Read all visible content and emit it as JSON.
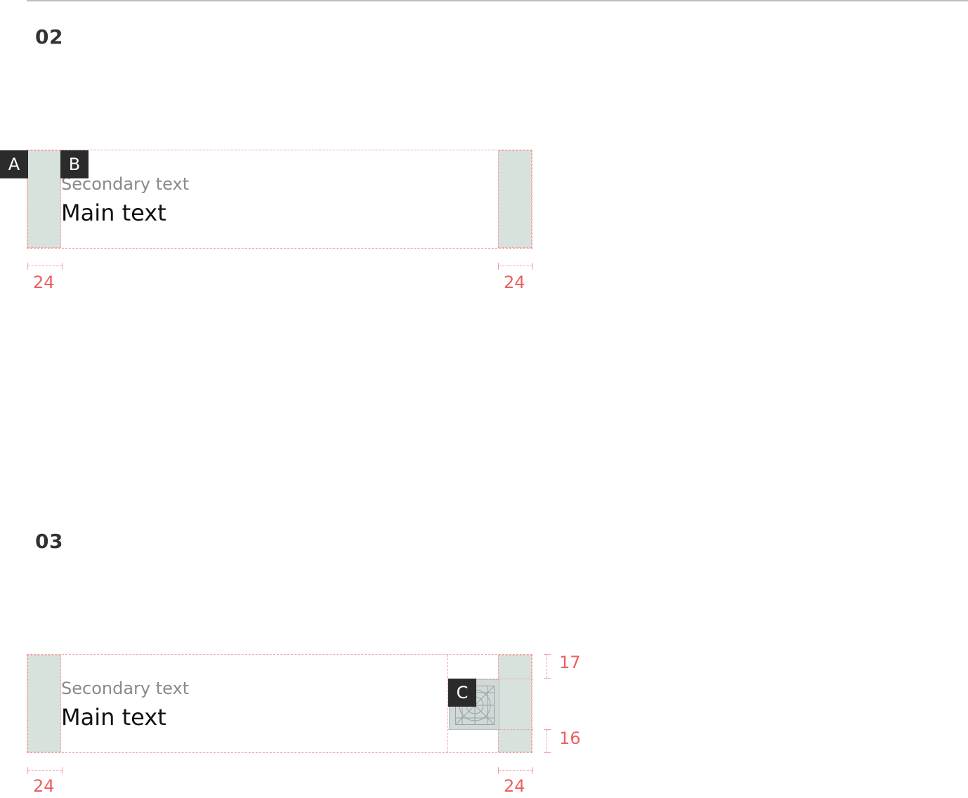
{
  "sections": [
    {
      "number": "02",
      "labels": {
        "padding_tag": "A",
        "text_tag": "B"
      },
      "text": {
        "secondary": "Secondary text",
        "main": "Main text"
      },
      "dimensions": {
        "left": "24",
        "right": "24"
      }
    },
    {
      "number": "03",
      "labels": {
        "icon_tag": "C"
      },
      "text": {
        "secondary": "Secondary text",
        "main": "Main text"
      },
      "dimensions": {
        "left": "24",
        "right": "24",
        "top": "17",
        "bottom": "16"
      }
    }
  ],
  "colors": {
    "padding_fill": "#d7e2dc",
    "guide_line": "#f1a3a3",
    "dimension_text": "#ef5f5f",
    "tag_background": "#2b2b2b",
    "secondary_text": "#8a8a8a",
    "main_text": "#111111",
    "icon_fill": "#d0d8d8"
  }
}
